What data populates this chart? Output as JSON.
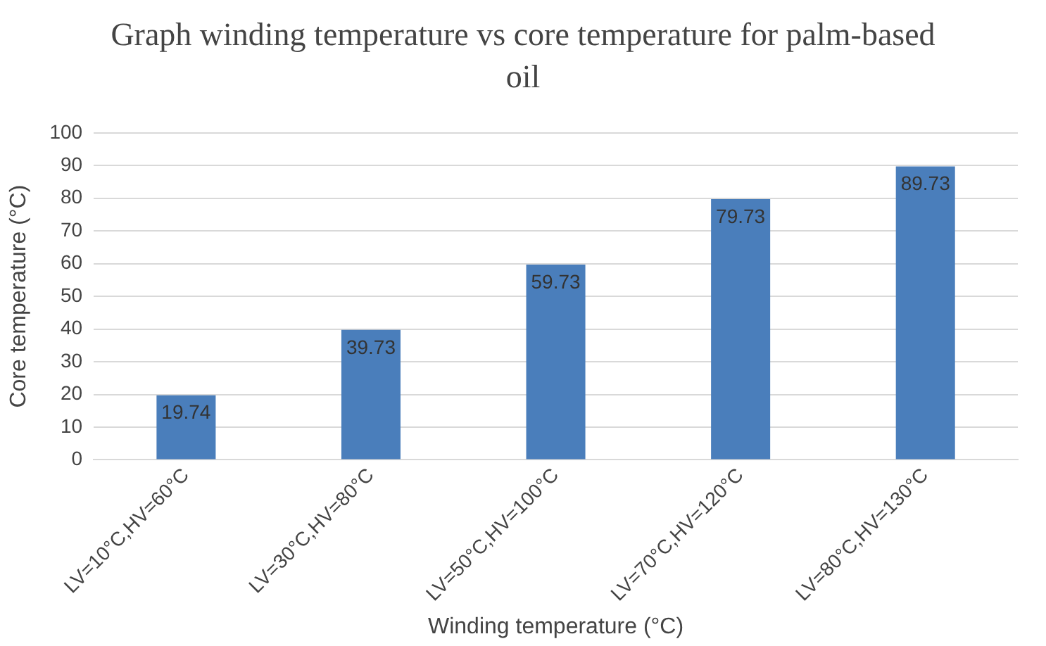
{
  "chart_data": {
    "type": "bar",
    "title": "Graph winding temperature vs core temperature for palm-based oil",
    "xlabel": "Winding temperature (°C)",
    "ylabel": "Core temperature (°C)",
    "categories": [
      "LV=10°C,HV=60°C",
      "LV=30°C,HV=80°C",
      "LV=50°C,HV=100°C",
      "LV=70°C,HV=120°C",
      "LV=80°C,HV=130°C"
    ],
    "values": [
      19.74,
      39.73,
      59.73,
      79.73,
      89.73
    ],
    "color": "#4a7ebb",
    "ylim": [
      0,
      100
    ],
    "yticks": [
      0,
      10,
      20,
      30,
      40,
      50,
      60,
      70,
      80,
      90,
      100
    ],
    "grid": "y",
    "data_labels": true,
    "legend": false
  }
}
